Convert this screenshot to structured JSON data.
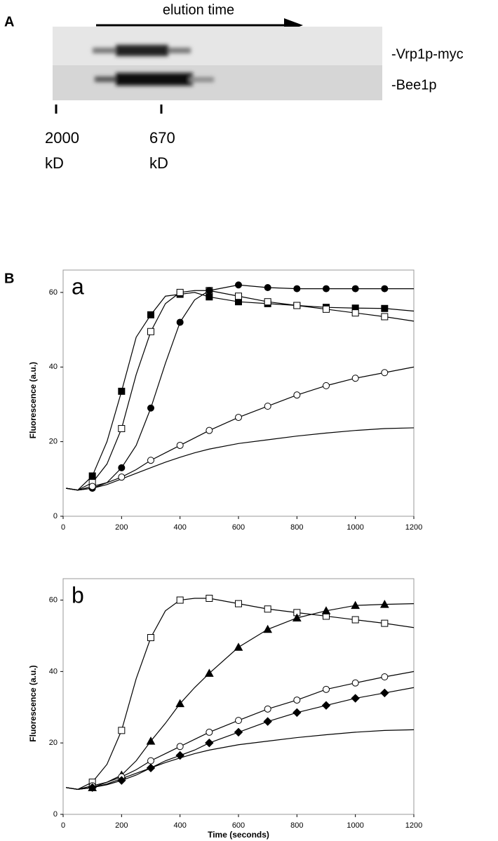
{
  "panel_a": {
    "label": "A",
    "arrow_label": "elution time",
    "lanes": [
      "-Vrp1p-myc",
      "-Bee1p"
    ],
    "size_markers": [
      {
        "value": "2000",
        "unit": "kD"
      },
      {
        "value": "670",
        "unit": "kD"
      }
    ]
  },
  "panel_b_label": "B",
  "chart_data": [
    {
      "type": "line",
      "label": "a",
      "y_label": "Fluorescence  (a.u.)",
      "x": [
        10,
        50,
        100,
        150,
        200,
        250,
        300,
        350,
        400,
        450,
        500,
        600,
        700,
        800,
        900,
        1000,
        1100,
        1200
      ],
      "xlim": [
        0,
        1200
      ],
      "xticks": [
        0,
        200,
        400,
        600,
        800,
        1000,
        1200
      ],
      "ylim": [
        0,
        66
      ],
      "yticks": [
        0,
        20,
        40,
        60
      ],
      "series": [
        {
          "marker": "square-filled",
          "color": "#000000",
          "values": [
            7.5,
            7,
            10.8,
            20,
            33.5,
            48,
            54,
            59,
            59.5,
            60,
            58.8,
            57.5,
            57,
            56.5,
            56,
            55.8,
            55.7,
            55
          ]
        },
        {
          "marker": "square-open",
          "color": "#000000",
          "values": [
            7.5,
            7,
            9,
            14,
            23.5,
            38,
            49.5,
            57,
            60,
            60.5,
            60.5,
            59,
            57.5,
            56.5,
            55.5,
            54.5,
            53.5,
            52.3
          ]
        },
        {
          "marker": "circle-filled",
          "color": "#000000",
          "values": [
            7.5,
            7,
            7.5,
            9,
            13,
            19,
            29,
            41,
            52,
            58,
            60.5,
            62,
            61.3,
            61,
            61,
            61,
            61,
            61
          ]
        },
        {
          "marker": "circle-open",
          "color": "#000000",
          "values": [
            7.5,
            7,
            8,
            9,
            10.5,
            12.5,
            15,
            17,
            19,
            21,
            23,
            26.5,
            29.5,
            32.5,
            35,
            37,
            38.5,
            40
          ]
        },
        {
          "marker": "none",
          "color": "#000000",
          "values": [
            7.5,
            7,
            7.5,
            8.5,
            10,
            11.5,
            13,
            14.5,
            15.8,
            17,
            18,
            19.5,
            20.5,
            21.5,
            22.3,
            23,
            23.5,
            23.7
          ]
        }
      ]
    },
    {
      "type": "line",
      "label": "b",
      "y_label": "Fluorescence  (a.u.)",
      "x_label": "Time  (seconds)",
      "x": [
        10,
        50,
        100,
        150,
        200,
        250,
        300,
        350,
        400,
        450,
        500,
        600,
        700,
        800,
        900,
        1000,
        1100,
        1200
      ],
      "xlim": [
        0,
        1200
      ],
      "xticks": [
        0,
        200,
        400,
        600,
        800,
        1000,
        1200
      ],
      "ylim": [
        0,
        66
      ],
      "yticks": [
        0,
        20,
        40,
        60
      ],
      "series": [
        {
          "marker": "square-open",
          "color": "#000000",
          "values": [
            7.5,
            7,
            9,
            14,
            23.5,
            38,
            49.5,
            57,
            60,
            60.5,
            60.5,
            59,
            57.5,
            56.5,
            55.5,
            54.5,
            53.5,
            52.3
          ]
        },
        {
          "marker": "triangle-filled",
          "color": "#000000",
          "values": [
            7.5,
            7,
            7.5,
            9,
            11,
            15,
            20.5,
            25.5,
            31,
            35.5,
            39.5,
            46.8,
            51.8,
            55,
            57,
            58.5,
            58.8,
            59
          ]
        },
        {
          "marker": "circle-open",
          "color": "#000000",
          "values": [
            7.5,
            7,
            8,
            9,
            10.5,
            12.5,
            15,
            17,
            19,
            21,
            23,
            26.3,
            29.5,
            32,
            35,
            36.8,
            38.5,
            40
          ]
        },
        {
          "marker": "diamond-filled",
          "color": "#000000",
          "values": [
            7.5,
            7,
            7.5,
            8.3,
            9.5,
            11,
            13,
            15,
            16.5,
            18,
            20,
            23,
            26,
            28.5,
            30.5,
            32.5,
            34,
            35.5
          ]
        },
        {
          "marker": "none",
          "color": "#000000",
          "values": [
            7.5,
            7,
            7.5,
            8.5,
            10,
            11.5,
            13,
            14.5,
            15.8,
            17,
            18,
            19.5,
            20.5,
            21.5,
            22.3,
            23,
            23.5,
            23.7
          ]
        }
      ]
    }
  ]
}
